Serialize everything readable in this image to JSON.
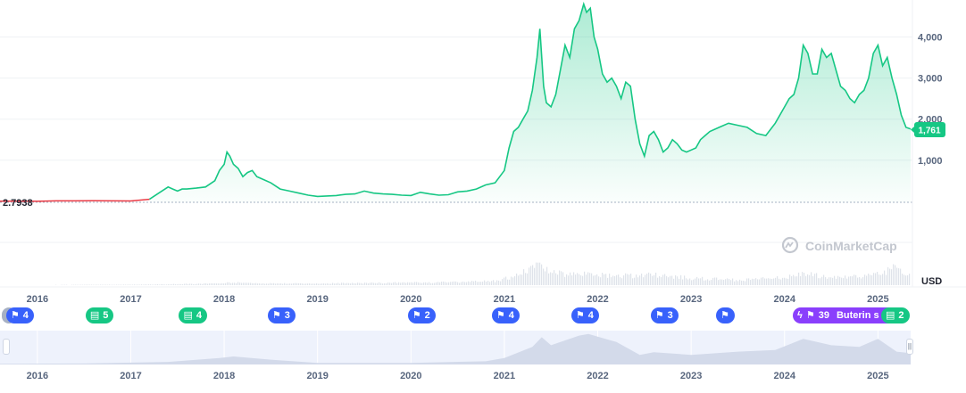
{
  "chart_data": {
    "type": "area",
    "title": "",
    "xlabel": "",
    "ylabel": "",
    "currency_label": "USD",
    "yticks": [
      1000,
      2000,
      3000,
      4000
    ],
    "ytick_labels": [
      "1,000",
      "2,000",
      "3,000",
      "4,000"
    ],
    "ylim": [
      -1000,
      4900
    ],
    "xlim": [
      2015.6,
      2025.35
    ],
    "xticks": [
      "2016",
      "2017",
      "2018",
      "2019",
      "2020",
      "2021",
      "2022",
      "2023",
      "2024",
      "2025"
    ],
    "baseline": {
      "value": 2.7938,
      "label": "2.7938"
    },
    "current_price": {
      "value": 1761,
      "label": "1,761"
    },
    "brand": "CoinMarketCap",
    "series": [
      {
        "x": [
          2015.6,
          2015.8,
          2016.0,
          2016.2,
          2016.4,
          2016.6,
          2016.8,
          2017.0,
          2017.2,
          2017.3,
          2017.4,
          2017.45,
          2017.5,
          2017.55,
          2017.6,
          2017.7,
          2017.8,
          2017.9,
          2017.95,
          2018.0,
          2018.03,
          2018.06,
          2018.1,
          2018.15,
          2018.2,
          2018.25,
          2018.3,
          2018.35,
          2018.4,
          2018.5,
          2018.6,
          2018.7,
          2018.8,
          2018.9,
          2019.0,
          2019.1,
          2019.2,
          2019.3,
          2019.4,
          2019.5,
          2019.6,
          2019.7,
          2019.8,
          2019.9,
          2020.0,
          2020.1,
          2020.2,
          2020.3,
          2020.4,
          2020.5,
          2020.6,
          2020.7,
          2020.8,
          2020.9,
          2021.0,
          2021.05,
          2021.1,
          2021.15,
          2021.2,
          2021.25,
          2021.3,
          2021.35,
          2021.38,
          2021.42,
          2021.45,
          2021.5,
          2021.55,
          2021.6,
          2021.65,
          2021.7,
          2021.75,
          2021.8,
          2021.85,
          2021.88,
          2021.92,
          2021.96,
          2022.0,
          2022.05,
          2022.1,
          2022.15,
          2022.2,
          2022.25,
          2022.3,
          2022.35,
          2022.4,
          2022.45,
          2022.5,
          2022.55,
          2022.6,
          2022.65,
          2022.7,
          2022.75,
          2022.8,
          2022.85,
          2022.9,
          2022.95,
          2023.0,
          2023.05,
          2023.1,
          2023.15,
          2023.2,
          2023.3,
          2023.4,
          2023.5,
          2023.6,
          2023.7,
          2023.8,
          2023.9,
          2024.0,
          2024.05,
          2024.1,
          2024.15,
          2024.2,
          2024.25,
          2024.3,
          2024.35,
          2024.4,
          2024.45,
          2024.5,
          2024.55,
          2024.6,
          2024.65,
          2024.7,
          2024.75,
          2024.8,
          2024.85,
          2024.9,
          2024.95,
          2025.0,
          2025.05,
          2025.1,
          2025.15,
          2025.2,
          2025.25,
          2025.3,
          2025.35
        ],
        "y": [
          2.79,
          2.79,
          1,
          10,
          11,
          12,
          10,
          8,
          50,
          200,
          350,
          300,
          250,
          300,
          300,
          320,
          350,
          500,
          750,
          900,
          1200,
          1100,
          900,
          800,
          600,
          700,
          750,
          600,
          550,
          450,
          300,
          250,
          200,
          150,
          120,
          130,
          140,
          170,
          180,
          250,
          200,
          180,
          170,
          150,
          140,
          220,
          180,
          150,
          160,
          230,
          250,
          300,
          400,
          450,
          750,
          1300,
          1700,
          1800,
          2000,
          2200,
          2700,
          3500,
          4200,
          2800,
          2400,
          2300,
          2600,
          3200,
          3800,
          3500,
          4200,
          4400,
          4800,
          4600,
          4700,
          4000,
          3700,
          3100,
          2900,
          3000,
          2800,
          2500,
          2900,
          2800,
          2000,
          1400,
          1100,
          1600,
          1700,
          1500,
          1200,
          1300,
          1500,
          1400,
          1250,
          1200,
          1250,
          1300,
          1500,
          1600,
          1700,
          1800,
          1900,
          1850,
          1800,
          1650,
          1600,
          1900,
          2300,
          2500,
          2600,
          3000,
          3800,
          3600,
          3100,
          3100,
          3700,
          3500,
          3600,
          3200,
          2800,
          2700,
          2500,
          2400,
          2600,
          2700,
          3000,
          3600,
          3800,
          3300,
          3500,
          3000,
          2600,
          2100,
          1800,
          1761
        ]
      }
    ],
    "volume": {
      "x": [
        2015.6,
        2016.0,
        2016.5,
        2017.0,
        2017.4,
        2017.9,
        2018.1,
        2018.5,
        2019.0,
        2019.5,
        2020.0,
        2020.5,
        2020.9,
        2021.1,
        2021.3,
        2021.35,
        2021.5,
        2021.8,
        2022.0,
        2022.4,
        2022.6,
        2022.8,
        2023.0,
        2023.5,
        2024.0,
        2024.2,
        2024.5,
        2024.8,
        2025.0,
        2025.15,
        2025.25,
        2025.35
      ],
      "y": [
        0,
        0.2,
        0.4,
        0.6,
        1,
        2,
        3,
        2,
        2,
        2.5,
        3,
        3.5,
        5,
        10,
        20,
        26,
        14,
        13,
        12,
        11,
        12,
        10,
        8,
        6,
        9,
        13,
        9,
        10,
        13,
        20,
        16,
        11
      ]
    },
    "events": [
      {
        "type": "flag",
        "count": "4",
        "x": 2015.8
      },
      {
        "type": "news",
        "count": "5",
        "x": 2016.65
      },
      {
        "type": "news",
        "count": "4",
        "x": 2017.65
      },
      {
        "type": "flag",
        "count": "3",
        "x": 2018.6
      },
      {
        "type": "flag",
        "count": "2",
        "x": 2020.1
      },
      {
        "type": "flag",
        "count": "4",
        "x": 2021.0
      },
      {
        "type": "flag",
        "count": "4",
        "x": 2021.85
      },
      {
        "type": "flag",
        "count": "3",
        "x": 2022.7
      },
      {
        "type": "flag",
        "count": "",
        "x": 2023.4
      },
      {
        "type": "flag",
        "count": "39",
        "x": 2024.45
      },
      {
        "type": "news",
        "count": "2",
        "x": 2025.15
      }
    ],
    "event_overflow_label": "Buterin s",
    "navigator": {
      "xlim": [
        2015.6,
        2025.35
      ],
      "x": [
        2015.6,
        2016.5,
        2017.4,
        2017.95,
        2018.1,
        2018.5,
        2019.0,
        2020.0,
        2020.8,
        2021.0,
        2021.3,
        2021.4,
        2021.5,
        2021.8,
        2021.9,
        2022.2,
        2022.45,
        2022.6,
        2023.0,
        2023.5,
        2023.9,
        2024.2,
        2024.5,
        2024.8,
        2025.0,
        2025.2,
        2025.35
      ],
      "y": [
        0.02,
        0.03,
        0.08,
        0.2,
        0.25,
        0.15,
        0.05,
        0.05,
        0.1,
        0.2,
        0.55,
        0.85,
        0.6,
        0.9,
        0.95,
        0.7,
        0.3,
        0.38,
        0.3,
        0.4,
        0.45,
        0.8,
        0.6,
        0.55,
        0.8,
        0.4,
        0.35
      ]
    }
  }
}
